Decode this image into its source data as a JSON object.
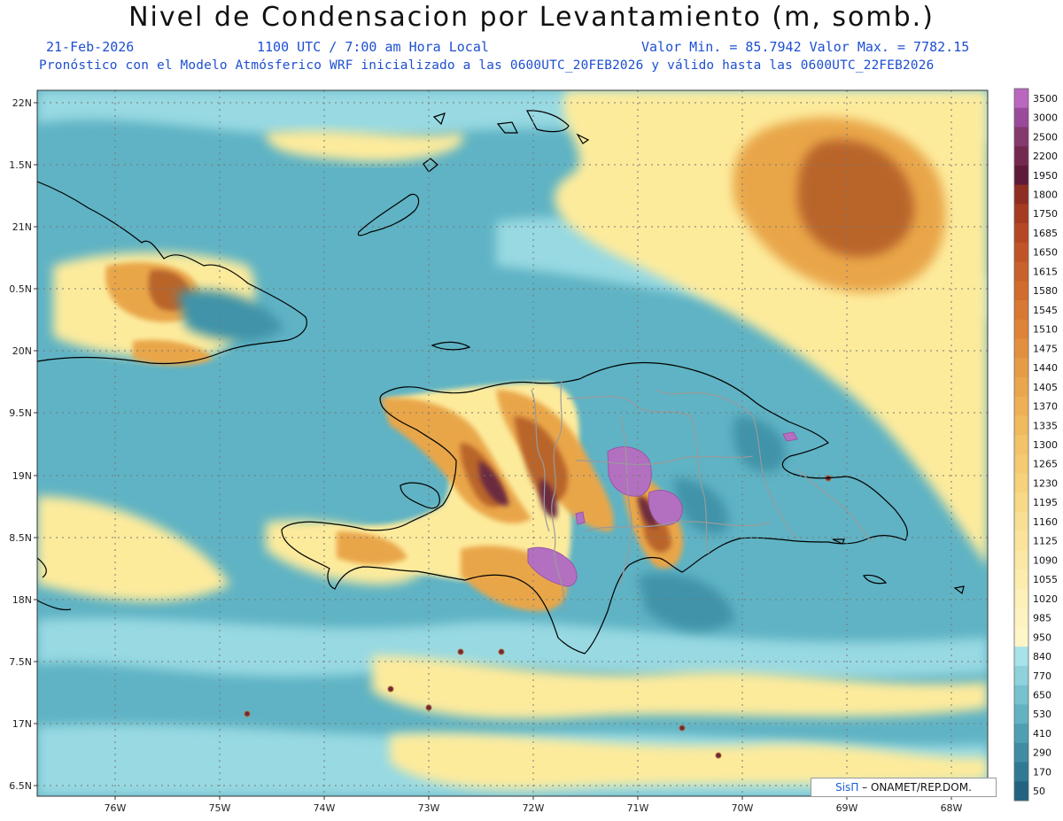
{
  "header": {
    "title": "Nivel de Condensacion por Levantamiento (m, somb.)",
    "date": "21-Feb-2026",
    "time": "1100 UTC / 7:00 am Hora Local",
    "min_max": "Valor Min. = 85.7942  Valor Max. = 7782.15",
    "model_info": "Pronóstico con el Modelo Atmósferico WRF inicializado a las 0600UTC_20FEB2026 y válido hasta las  0600UTC_22FEB2026"
  },
  "map": {
    "lat_labels": [
      "22N",
      "1.5N",
      "21N",
      "0.5N",
      "20N",
      "9.5N",
      "19N",
      "8.5N",
      "18N",
      "7.5N",
      "17N",
      "6.5N"
    ],
    "lon_labels": [
      "76W",
      "75W",
      "74W",
      "73W",
      "72W",
      "71W",
      "70W",
      "69W",
      "68W"
    ],
    "colors": {
      "ocean": "#5fb3c4",
      "ocean_light": "#98d9e2",
      "yellow": "#fdeb9c",
      "orange": "#e9a649",
      "brown": "#b9652a",
      "dark": "#6a2b3f",
      "purple": "#b470c0"
    }
  },
  "colorbar": {
    "levels": [
      "3500",
      "3000",
      "2500",
      "2200",
      "1950",
      "1800",
      "1750",
      "1685",
      "1650",
      "1615",
      "1580",
      "1545",
      "1510",
      "1475",
      "1440",
      "1405",
      "1370",
      "1335",
      "1300",
      "1265",
      "1230",
      "1195",
      "1160",
      "1125",
      "1090",
      "1055",
      "1020",
      "985",
      "950",
      "840",
      "770",
      "650",
      "530",
      "410",
      "290",
      "170",
      "50"
    ],
    "colors": [
      "#b967bf",
      "#9a4a9a",
      "#84396f",
      "#74284f",
      "#5f1a3a",
      "#8e2d22",
      "#a53b20",
      "#b54722",
      "#c05426",
      "#c9612a",
      "#d06c2e",
      "#d77833",
      "#dd8438",
      "#e2903f",
      "#e69c46",
      "#eaa64d",
      "#edb056",
      "#f0ba5f",
      "#f2c369",
      "#f4cb73",
      "#f6d27d",
      "#f7d987",
      "#f9df92",
      "#fae49c",
      "#fbe8a5",
      "#fcecae",
      "#fdf0b8",
      "#fef3c0",
      "#fef6c8",
      "#a8e2ea",
      "#8fd2dc",
      "#78c2cf",
      "#63b2c2",
      "#4f9fb3",
      "#3f8ca3",
      "#307993",
      "#22647f"
    ]
  },
  "credit": {
    "brand": "SisΠ",
    "text": "– ONAMET/REP.DOM."
  }
}
